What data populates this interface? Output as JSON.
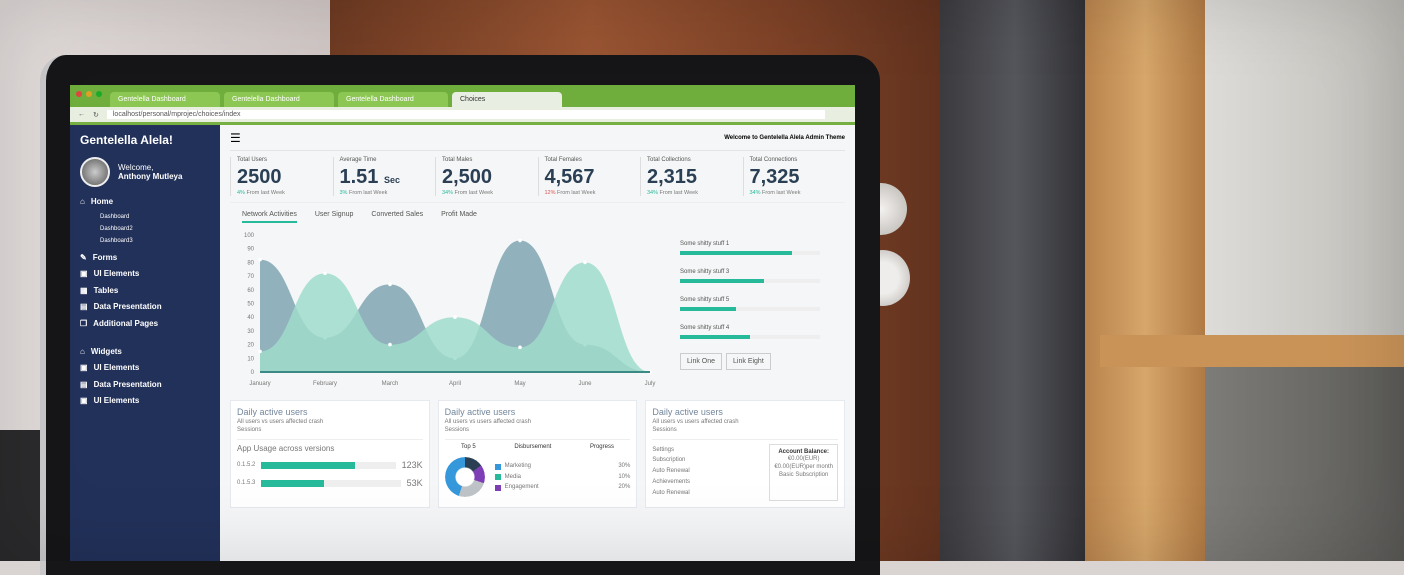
{
  "browser": {
    "tabs": [
      "Gentelella Dashboard",
      "Gentelella Dashboard",
      "Gentelella Dashboard",
      "Choices"
    ],
    "url": "localhost/personal/mprojec/choices/index"
  },
  "sidebar": {
    "brand": "Gentelella Alela!",
    "welcome": "Welcome,",
    "user": "Anthony Mutleya",
    "items": [
      {
        "label": "Home",
        "icon": "home-icon"
      },
      {
        "label": "Forms",
        "icon": "edit-icon"
      },
      {
        "label": "UI Elements",
        "icon": "desktop-icon"
      },
      {
        "label": "Tables",
        "icon": "table-icon"
      },
      {
        "label": "Data Presentation",
        "icon": "chart-icon"
      },
      {
        "label": "Additional Pages",
        "icon": "clone-icon"
      },
      {
        "label": "Widgets",
        "icon": "home-icon"
      },
      {
        "label": "UI Elements",
        "icon": "desktop-icon"
      },
      {
        "label": "Data Presentation",
        "icon": "chart-icon"
      },
      {
        "label": "UI Elements",
        "icon": "desktop-icon"
      }
    ],
    "subitems": [
      "Dashboard",
      "Dashboard2",
      "Dashboard3"
    ]
  },
  "header": {
    "welcome": "Welcome to Gentelella Alela Admin Theme"
  },
  "stats": [
    {
      "label": "Total Users",
      "value": "2500",
      "unit": "",
      "change": "4%",
      "note": "From last Week",
      "dir": "up"
    },
    {
      "label": "Average Time",
      "value": "1.51",
      "unit": "Sec",
      "change": "3%",
      "note": "From last Week",
      "dir": "up"
    },
    {
      "label": "Total Males",
      "value": "2,500",
      "unit": "",
      "change": "34%",
      "note": "From last Week",
      "dir": "up"
    },
    {
      "label": "Total Females",
      "value": "4,567",
      "unit": "",
      "change": "12%",
      "note": "From last Week",
      "dir": "down"
    },
    {
      "label": "Total Collections",
      "value": "2,315",
      "unit": "",
      "change": "34%",
      "note": "From last Week",
      "dir": "up"
    },
    {
      "label": "Total Connections",
      "value": "7,325",
      "unit": "",
      "change": "34%",
      "note": "From last Week",
      "dir": "up"
    }
  ],
  "chart_tabs": [
    "Network Activities",
    "User Signup",
    "Converted Sales",
    "Profit Made"
  ],
  "chart": {
    "months": [
      "January",
      "February",
      "March",
      "April",
      "May",
      "June",
      "July"
    ],
    "yticks": [
      "100",
      "90",
      "80",
      "70",
      "60",
      "50",
      "40",
      "30",
      "20",
      "10",
      "0"
    ],
    "series": [
      {
        "color": "#7fa4b2",
        "values": [
          82,
          25,
          64,
          10,
          96,
          20,
          0
        ]
      },
      {
        "color": "#9fdccb",
        "values": [
          15,
          72,
          20,
          40,
          18,
          80,
          0
        ]
      }
    ]
  },
  "progress": [
    {
      "label": "Some shitty stuff 1",
      "pct": 80
    },
    {
      "label": "Some shitty stuff 3",
      "pct": 60
    },
    {
      "label": "Some shitty stuff 5",
      "pct": 40
    },
    {
      "label": "Some shitty stuff 4",
      "pct": 50
    }
  ],
  "links": [
    "Link One",
    "Link Eight"
  ],
  "panels": [
    {
      "title": "Daily active users",
      "note": "All users vs users affected crash",
      "sub": "Sessions",
      "heading": "App Usage across versions",
      "rows": [
        {
          "v": "0.1.5.2",
          "pct": 70,
          "val": "123K"
        },
        {
          "v": "0.1.5.3",
          "pct": 45,
          "val": "53K"
        }
      ]
    },
    {
      "title": "Daily active users",
      "note": "All users vs users affected crash",
      "sub": "Sessions",
      "cols": [
        "Top 5",
        "Disbursement",
        "Progress"
      ],
      "legend": [
        {
          "label": "Marketing",
          "pct": "30%",
          "color": "#3498db"
        },
        {
          "label": "Media",
          "pct": "10%",
          "color": "#26b99a"
        },
        {
          "label": "Engagement",
          "pct": "20%",
          "color": "#7e3fb6"
        }
      ]
    },
    {
      "title": "Daily active users",
      "note": "All users vs users affected crash",
      "sub": "Sessions",
      "menu": [
        "Settings",
        "Subscription",
        "Auto Renewal",
        "Achievements",
        "Auto Renewal"
      ],
      "balance_title": "Account Balance:",
      "balance": "€0.00(EUR)",
      "balance2": "€0.00(EUR)per month",
      "plan": "Basic Subscription"
    }
  ]
}
